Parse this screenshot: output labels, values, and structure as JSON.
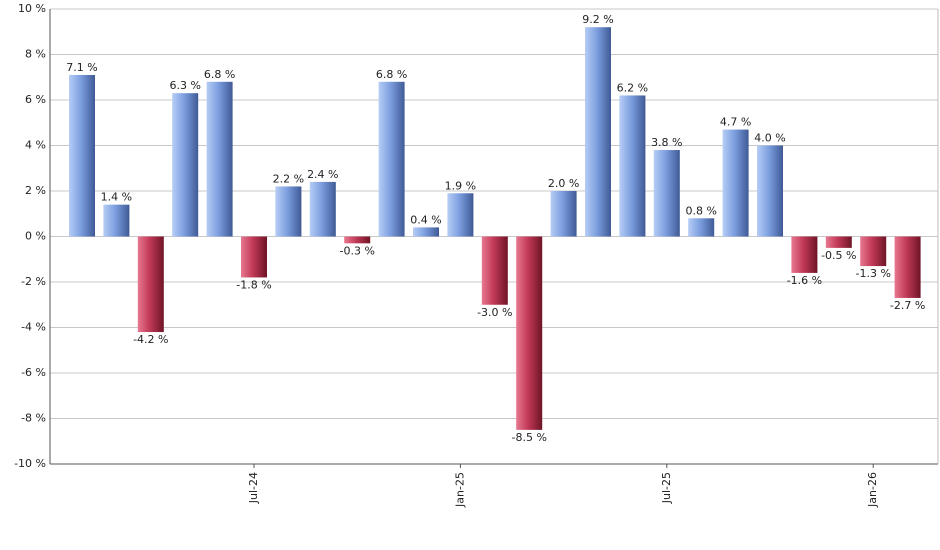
{
  "chart_data": {
    "type": "bar",
    "categories": [
      null,
      null,
      null,
      null,
      null,
      "Jul-24",
      null,
      null,
      null,
      null,
      null,
      "Jan-25",
      null,
      null,
      null,
      null,
      null,
      "Jul-25",
      null,
      null,
      null,
      null,
      null,
      "Jan-26",
      null
    ],
    "values": [
      7.1,
      1.4,
      -4.2,
      6.3,
      6.8,
      -1.8,
      2.2,
      2.4,
      -0.3,
      6.8,
      0.4,
      1.9,
      -3.0,
      -8.5,
      2.0,
      9.2,
      6.2,
      3.8,
      0.8,
      4.7,
      4.0,
      -1.6,
      -0.5,
      -1.3,
      -2.7
    ],
    "value_labels": [
      "7.1 %",
      "1.4 %",
      "-4.2 %",
      "6.3 %",
      "6.8 %",
      "-1.8 %",
      "2.2 %",
      "2.4 %",
      "-0.3 %",
      "6.8 %",
      "0.4 %",
      "1.9 %",
      "-3.0 %",
      "-8.5 %",
      "2.0 %",
      "9.2 %",
      "6.2 %",
      "3.8 %",
      "0.8 %",
      "4.7 %",
      "4.0 %",
      "-1.6 %",
      "-0.5 %",
      "-1.3 %",
      "-2.7 %"
    ],
    "positive_color": "#6f93d8",
    "negative_color": "#b8324f",
    "ylim": [
      -10,
      10
    ],
    "yticks": [
      {
        "value": -10,
        "label": "-10 %"
      },
      {
        "value": -8,
        "label": "-8 %"
      },
      {
        "value": -6,
        "label": "-6 %"
      },
      {
        "value": -4,
        "label": "-4 %"
      },
      {
        "value": -2,
        "label": "-2 %"
      },
      {
        "value": 0,
        "label": "0 %"
      },
      {
        "value": 2,
        "label": "2 %"
      },
      {
        "value": 4,
        "label": "4 %"
      },
      {
        "value": 6,
        "label": "6 %"
      },
      {
        "value": 8,
        "label": "8 %"
      },
      {
        "value": 10,
        "label": "10 %"
      }
    ],
    "grid": true
  }
}
